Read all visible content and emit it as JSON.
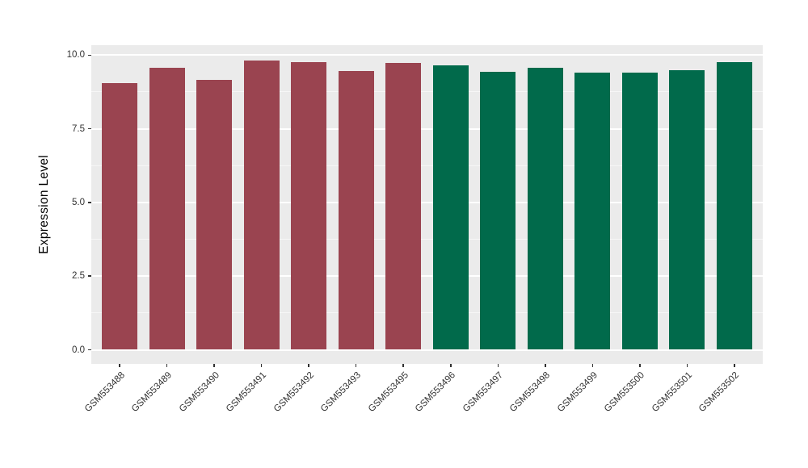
{
  "page": {
    "background": "#FFFFFF",
    "title": ""
  },
  "chart_data": {
    "type": "bar",
    "title": "",
    "xlabel": "",
    "ylabel": "Expression Level",
    "categories": [
      "GSM553488",
      "GSM553489",
      "GSM553490",
      "GSM553491",
      "GSM553492",
      "GSM553493",
      "GSM553495",
      "GSM553496",
      "GSM553497",
      "GSM553498",
      "GSM553499",
      "GSM553500",
      "GSM553501",
      "GSM553502"
    ],
    "values": [
      9.04,
      9.58,
      9.15,
      9.83,
      9.77,
      9.47,
      9.73,
      9.64,
      9.42,
      9.56,
      9.41,
      9.41,
      9.48,
      9.77
    ],
    "bar_groups": [
      "maroon",
      "maroon",
      "maroon",
      "maroon",
      "maroon",
      "maroon",
      "maroon",
      "green",
      "green",
      "green",
      "green",
      "green",
      "green",
      "green"
    ],
    "group_colors": {
      "maroon": "#9A4450",
      "green": "#016A4B"
    },
    "y_ticks": {
      "values": [
        0,
        2.5,
        5,
        7.5,
        10
      ],
      "labels": [
        "0.0",
        "2.5",
        "5.0",
        "7.5",
        "10.0"
      ]
    },
    "y_minor_ticks": [
      1.25,
      3.75,
      6.25,
      8.75
    ],
    "ylim": [
      -0.48,
      10.34
    ],
    "x_tick_angle_deg": 45,
    "grid": "on",
    "legend_position": "none",
    "panel_bg": "#EBEBEB",
    "grid_major_color": "#FFFFFF",
    "grid_minor_color": "#F6F6F6",
    "tick_label_color": "#333333",
    "axis_title_color": "#000000"
  }
}
